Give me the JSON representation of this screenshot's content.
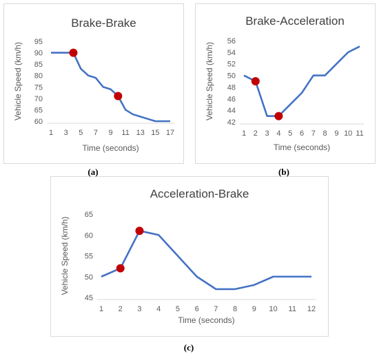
{
  "sublabels": [
    "(a)",
    "(b)",
    "(c)"
  ],
  "chart_data": [
    {
      "type": "line",
      "title": "Brake-Brake",
      "xlabel": "Time (seconds)",
      "ylabel": "Vehicle Speed (km/h)",
      "x": [
        1,
        2,
        3,
        4,
        5,
        6,
        7,
        8,
        9,
        10,
        11,
        12,
        13,
        14,
        15,
        16,
        17
      ],
      "xticks": [
        "1",
        "3",
        "5",
        "7",
        "9",
        "11",
        "13",
        "15",
        "17"
      ],
      "yticks": [
        "60",
        "65",
        "70",
        "75",
        "80",
        "85",
        "90",
        "95"
      ],
      "ylim": [
        60,
        95
      ],
      "series": [
        {
          "values": [
            90,
            90,
            90,
            90,
            83,
            80,
            79,
            75,
            74,
            71,
            65,
            63,
            62,
            61,
            60,
            60,
            60
          ]
        }
      ],
      "markers": [
        {
          "x": 4,
          "y": 90
        },
        {
          "x": 10,
          "y": 71
        }
      ],
      "line_color": "#4472c4",
      "marker_color": "#c00000",
      "grid": false,
      "legend": "none"
    },
    {
      "type": "line",
      "title": "Brake-Acceleration",
      "xlabel": "Time (seconds)",
      "ylabel": "Vehicle Speed (km/h)",
      "x": [
        1,
        2,
        3,
        4,
        5,
        6,
        7,
        8,
        9,
        10,
        11
      ],
      "xticks": [
        "1",
        "2",
        "3",
        "4",
        "5",
        "6",
        "7",
        "8",
        "9",
        "10",
        "11"
      ],
      "yticks": [
        "42",
        "44",
        "46",
        "48",
        "50",
        "52",
        "54",
        "56"
      ],
      "ylim": [
        42,
        56
      ],
      "series": [
        {
          "values": [
            50,
            49,
            43,
            43,
            45,
            47,
            50,
            50,
            52,
            54,
            55
          ]
        }
      ],
      "markers": [
        {
          "x": 2,
          "y": 49
        },
        {
          "x": 4,
          "y": 43
        }
      ],
      "line_color": "#4472c4",
      "marker_color": "#c00000",
      "grid": false,
      "legend": "none"
    },
    {
      "type": "line",
      "title": "Acceleration-Brake",
      "xlabel": "Time (seconds)",
      "ylabel": "Vehicle Speed (km/h)",
      "x": [
        1,
        2,
        3,
        4,
        5,
        6,
        7,
        8,
        9,
        10,
        11,
        12
      ],
      "xticks": [
        "1",
        "2",
        "3",
        "4",
        "5",
        "6",
        "7",
        "8",
        "9",
        "10",
        "11",
        "12"
      ],
      "yticks": [
        "45",
        "50",
        "55",
        "60",
        "65"
      ],
      "ylim": [
        45,
        65
      ],
      "series": [
        {
          "values": [
            50,
            52,
            61,
            60,
            55,
            50,
            47,
            47,
            48,
            50,
            50,
            50
          ]
        }
      ],
      "markers": [
        {
          "x": 2,
          "y": 52
        },
        {
          "x": 3,
          "y": 61
        }
      ],
      "line_color": "#4472c4",
      "marker_color": "#c00000",
      "grid": false,
      "legend": "none"
    }
  ]
}
